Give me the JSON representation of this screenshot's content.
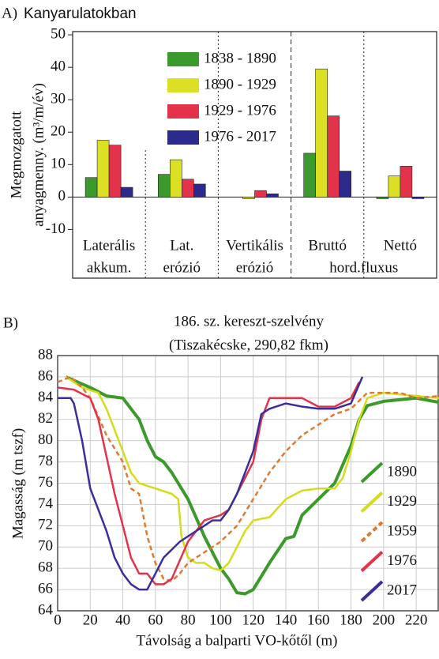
{
  "chart_data": [
    {
      "type": "bar",
      "panel": "A)",
      "title": "Kanyarulatokban",
      "ylabel": [
        "Megmozgatott",
        "anyagmenny. (m³/m/év)"
      ],
      "categories": [
        [
          "Laterális",
          "akkum."
        ],
        [
          "Lat.",
          "erózió"
        ],
        [
          "Vertikális",
          "erózió"
        ],
        [
          "Bruttó"
        ],
        [
          "Nettó"
        ]
      ],
      "group_label": "hord.fluxus",
      "ylim": [
        -25,
        51
      ],
      "yticks": [
        -10,
        0,
        10,
        20,
        30,
        40,
        50
      ],
      "series": [
        {
          "name": "1838 - 1890",
          "color": "#3c9a2c",
          "values": [
            6,
            7,
            0,
            13.5,
            -0.5
          ]
        },
        {
          "name": "1890 - 1929",
          "color": "#dce024",
          "values": [
            17.5,
            11.5,
            -0.5,
            39.5,
            6.5
          ]
        },
        {
          "name": "1929 - 1976",
          "color": "#e2334a",
          "values": [
            16,
            5.5,
            2,
            25,
            9.5
          ]
        },
        {
          "name": "1976 - 2017",
          "color": "#2c2a8c",
          "values": [
            3,
            4,
            1,
            8,
            -0.5
          ]
        }
      ]
    },
    {
      "type": "line",
      "panel": "B)",
      "title": [
        "186. sz. kereszt-szelvény",
        "(Tiszakécske, 290,82 fkm)"
      ],
      "xlabel": "Távolság a balparti VO-kőtől (m)",
      "ylabel": "Magasság (m tszf)",
      "xlim": [
        0,
        234
      ],
      "ylim": [
        64,
        88
      ],
      "grid": true,
      "xticks": [
        0,
        20,
        40,
        60,
        80,
        100,
        120,
        140,
        160,
        180,
        200,
        220
      ],
      "yticks": [
        64,
        66,
        68,
        70,
        72,
        74,
        76,
        78,
        80,
        82,
        84,
        86,
        88
      ],
      "series": [
        {
          "name": "1890",
          "color": "#3c9a2c",
          "dashed": false,
          "x": [
            5,
            20,
            30,
            40,
            45,
            50,
            55,
            60,
            65,
            70,
            80,
            90,
            100,
            105,
            110,
            115,
            120,
            130,
            140,
            145,
            150,
            160,
            170,
            180,
            185,
            190,
            200,
            220,
            234
          ],
          "values": [
            86,
            85,
            84.2,
            84,
            83,
            82,
            80,
            78.5,
            78,
            77,
            74.5,
            71,
            68,
            67,
            65.7,
            65.6,
            66,
            68.5,
            70.8,
            71,
            73,
            74.5,
            76,
            79.5,
            82,
            83.3,
            83.7,
            84,
            83.6
          ]
        },
        {
          "name": "1929",
          "color": "#d4dc1c",
          "dashed": false,
          "x": [
            5,
            15,
            25,
            30,
            35,
            40,
            45,
            50,
            60,
            70,
            74,
            76,
            80,
            85,
            90,
            95,
            100,
            105,
            110,
            115,
            120,
            130,
            140,
            150,
            160,
            170,
            175,
            180,
            185,
            190,
            200,
            234
          ],
          "values": [
            86,
            85,
            84.5,
            83,
            81,
            79,
            77,
            76,
            75.5,
            75,
            74.5,
            71,
            69,
            68.5,
            68.5,
            68,
            67.8,
            68.5,
            70,
            71.5,
            72.5,
            72.8,
            74.5,
            75.3,
            75.5,
            75.5,
            76.5,
            79,
            82,
            84,
            84.5,
            84
          ]
        },
        {
          "name": "1959",
          "color": "#e07a30",
          "dashed": true,
          "x": [
            0,
            8,
            15,
            20,
            30,
            40,
            45,
            50,
            55,
            60,
            65,
            70,
            75,
            80,
            90,
            100,
            110,
            120,
            130,
            140,
            150,
            160,
            170,
            180,
            190,
            200,
            210,
            220,
            234
          ],
          "values": [
            85.5,
            86,
            85,
            84,
            80.5,
            78,
            75.5,
            75,
            71,
            68.5,
            67,
            66.8,
            67.5,
            68.5,
            69.5,
            70.5,
            72,
            74.5,
            77,
            79,
            80.5,
            81.5,
            82.5,
            83,
            84.5,
            84.5,
            84.5,
            84,
            84.2
          ]
        },
        {
          "name": "1976",
          "color": "#e2334a",
          "dashed": false,
          "x": [
            0,
            10,
            20,
            25,
            30,
            35,
            40,
            45,
            50,
            55,
            60,
            65,
            70,
            80,
            90,
            100,
            105,
            110,
            120,
            125,
            130,
            140,
            150,
            160,
            170,
            180,
            185
          ],
          "values": [
            85,
            84.8,
            84,
            82,
            78.5,
            75,
            72,
            69,
            67.5,
            67.5,
            66.5,
            66.5,
            67,
            70.5,
            72.5,
            73,
            73.5,
            75,
            78,
            82,
            84,
            84,
            84,
            83.2,
            83.2,
            84,
            85.5
          ]
        },
        {
          "name": "2017",
          "color": "#3a2f9a",
          "dashed": false,
          "x": [
            0,
            8,
            10,
            15,
            20,
            25,
            30,
            35,
            40,
            45,
            50,
            55,
            60,
            65,
            75,
            85,
            95,
            100,
            105,
            110,
            115,
            120,
            125,
            130,
            140,
            150,
            160,
            170,
            180,
            187
          ],
          "values": [
            84,
            84,
            83.5,
            80,
            75.5,
            73.5,
            71.5,
            69,
            67.5,
            66.5,
            66,
            66,
            67.5,
            69,
            70.5,
            71.5,
            72.5,
            72.5,
            73.5,
            75,
            77,
            79,
            82.5,
            83,
            83.5,
            83.2,
            83,
            83,
            83.5,
            86
          ]
        }
      ]
    }
  ]
}
